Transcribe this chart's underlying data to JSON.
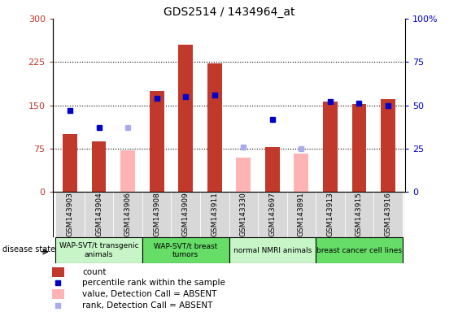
{
  "title": "GDS2514 / 1434964_at",
  "samples": [
    "GSM143903",
    "GSM143904",
    "GSM143906",
    "GSM143908",
    "GSM143909",
    "GSM143911",
    "GSM143330",
    "GSM143697",
    "GSM143891",
    "GSM143913",
    "GSM143915",
    "GSM143916"
  ],
  "count_values": [
    100,
    88,
    null,
    175,
    255,
    223,
    null,
    78,
    null,
    157,
    152,
    160
  ],
  "rank_values": [
    47,
    37,
    null,
    54,
    55,
    56,
    null,
    42,
    null,
    52,
    51,
    50
  ],
  "absent_value_values": [
    null,
    null,
    72,
    null,
    null,
    null,
    60,
    null,
    67,
    null,
    null,
    null
  ],
  "absent_rank_values": [
    null,
    null,
    37,
    null,
    null,
    null,
    26,
    null,
    25,
    null,
    null,
    null
  ],
  "groups": [
    {
      "label": "WAP-SVT/t transgenic\nanimals",
      "start": 0,
      "end": 3,
      "color": "#c8f5c8"
    },
    {
      "label": "WAP-SVT/t breast\ntumors",
      "start": 3,
      "end": 6,
      "color": "#66dd66"
    },
    {
      "label": "normal NMRI animals",
      "start": 6,
      "end": 9,
      "color": "#c8f5c8"
    },
    {
      "label": "breast cancer cell lines",
      "start": 9,
      "end": 12,
      "color": "#66dd66"
    }
  ],
  "ylim_left": [
    0,
    300
  ],
  "ylim_right": [
    0,
    100
  ],
  "yticks_left": [
    0,
    75,
    150,
    225,
    300
  ],
  "yticks_right": [
    0,
    25,
    50,
    75,
    100
  ],
  "color_count": "#c0392b",
  "color_rank": "#0000cc",
  "color_absent_value": "#ffb3b3",
  "color_absent_rank": "#aaaaee",
  "background_color": "#ffffff",
  "tick_bg": "#d8d8d8"
}
